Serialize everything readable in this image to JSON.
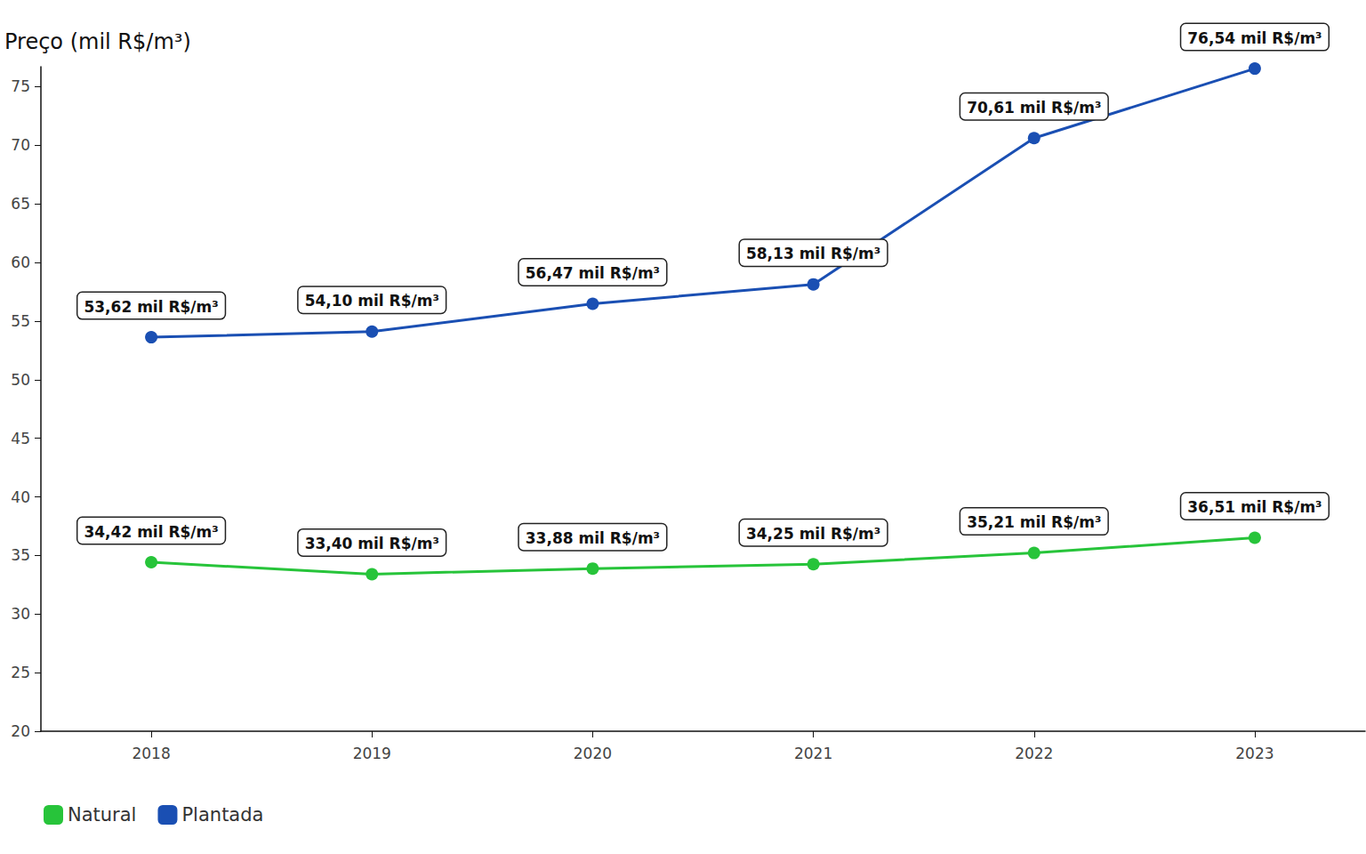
{
  "chart_data": {
    "type": "line",
    "y_label": "Preço (mil R$/m³)",
    "categories": [
      "2018",
      "2019",
      "2020",
      "2021",
      "2022",
      "2023"
    ],
    "series": [
      {
        "name": "Natural",
        "color": "#27c43a",
        "marker": "circle",
        "values": [
          34.42,
          33.4,
          33.88,
          34.25,
          35.21,
          36.51
        ],
        "value_labels": [
          "34,42 mil R$/m³",
          "33,40 mil R$/m³",
          "33,88 mil R$/m³",
          "34,25 mil R$/m³",
          "35,21 mil R$/m³",
          "36,51 mil R$/m³"
        ]
      },
      {
        "name": "Plantada",
        "color": "#1a4fb3",
        "marker": "circle",
        "values": [
          53.62,
          54.1,
          56.47,
          58.13,
          70.61,
          76.54
        ],
        "value_labels": [
          "53,62 mil R$/m³",
          "54,10 mil R$/m³",
          "56,47 mil R$/m³",
          "58,13 mil R$/m³",
          "70,61 mil R$/m³",
          "76,54 mil R$/m³"
        ]
      }
    ],
    "ylim": [
      20,
      76.7
    ],
    "yticks": [
      20,
      25,
      30,
      35,
      40,
      45,
      50,
      55,
      60,
      65,
      70,
      75
    ],
    "grid": false,
    "legend": "bottom-left",
    "data_labels": true
  }
}
